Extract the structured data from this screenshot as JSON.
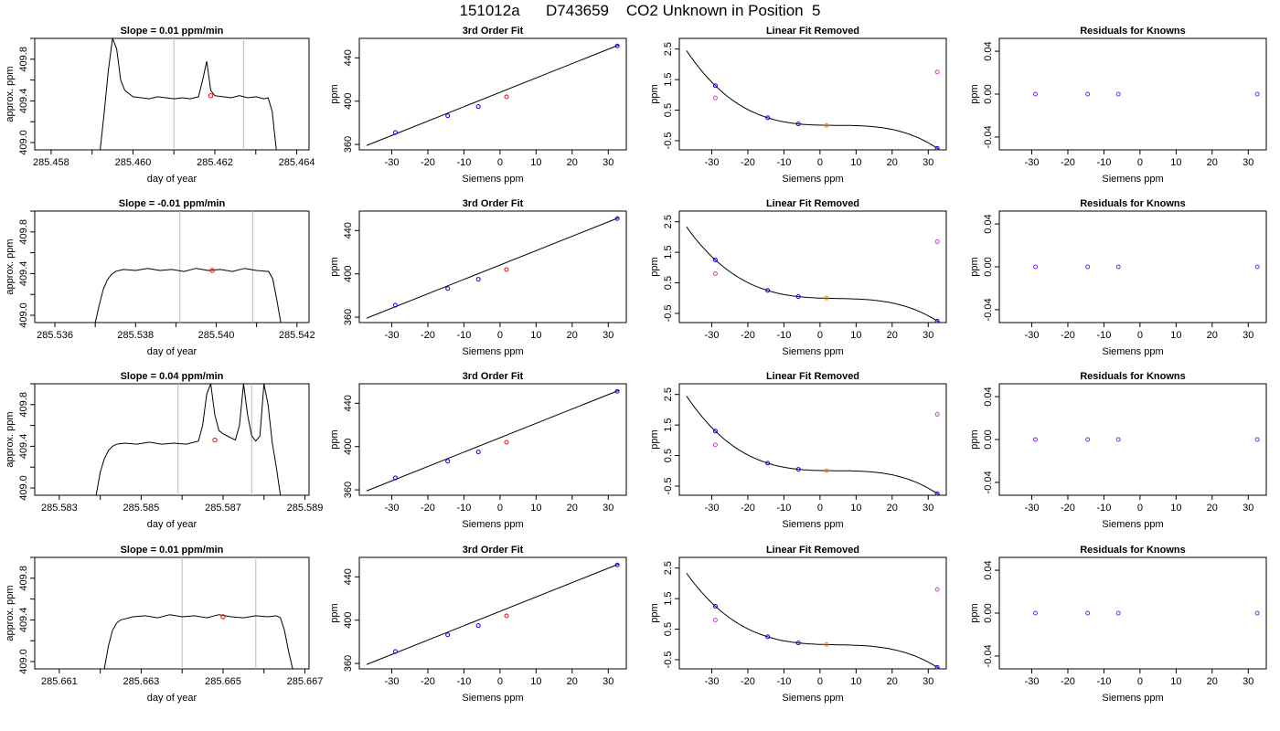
{
  "page_title": "151012a      D743659    CO2 Unknown in Position  5",
  "colors": {
    "trace": "#000000",
    "guide": "#bbbbbb",
    "unknown": "#ff0000",
    "knowns": "#0000ff",
    "fit_point": "#ff0000",
    "lin_removed_unknown": "#ff8800",
    "raw_point": "#cc44cc",
    "residual_point": "#7a22ff"
  },
  "chart_data": [
    {
      "type": "line",
      "row": 1,
      "col": 1,
      "title": "Slope =  0.01  ppm/min",
      "xlabel": "day of year",
      "ylabel": "approx. ppm",
      "xlim": [
        285.4576,
        285.4643
      ],
      "ylim": [
        408.93,
        410.0
      ],
      "xticks": [
        "285.458",
        "285.460",
        "285.462",
        "285.464"
      ],
      "yticks": [
        "409.0",
        "409.4",
        "409.8"
      ],
      "guides_x": [
        285.461,
        285.4627
      ],
      "marker": {
        "x": 285.4619,
        "y": 409.45
      },
      "trace_x": [
        285.4592,
        285.4593,
        285.4594,
        285.4595,
        285.4596,
        285.4597,
        285.4598,
        285.46,
        285.4602,
        285.4604,
        285.4606,
        285.4608,
        285.461,
        285.4612,
        285.4614,
        285.4616,
        285.4617,
        285.4618,
        285.4619,
        285.462,
        285.4622,
        285.4624,
        285.4626,
        285.4628,
        285.463,
        285.4632,
        285.4633,
        285.4634,
        285.4635
      ],
      "trace_y": [
        408.93,
        409.3,
        409.7,
        410.0,
        409.9,
        409.6,
        409.5,
        409.44,
        409.43,
        409.42,
        409.44,
        409.43,
        409.42,
        409.43,
        409.42,
        409.44,
        409.6,
        409.78,
        409.5,
        409.45,
        409.44,
        409.43,
        409.45,
        409.43,
        409.44,
        409.42,
        409.43,
        409.3,
        408.93
      ]
    },
    {
      "type": "scatter",
      "row": 1,
      "col": 2,
      "title": "3rd Order Fit",
      "xlabel": "Siemens ppm",
      "ylabel": "ppm",
      "xlim": [
        -39,
        35
      ],
      "ylim": [
        355,
        458
      ],
      "xticks": [
        "-30",
        "-20",
        "-10",
        "0",
        "10",
        "20",
        "30"
      ],
      "yticks": [
        "360",
        "400",
        "440"
      ],
      "knowns": {
        "x": [
          -29,
          -14.5,
          -6,
          32.5
        ],
        "y": [
          371,
          386.5,
          395,
          451
        ]
      },
      "unknown": {
        "x": [
          1.8
        ],
        "y": [
          404
        ]
      },
      "fit_line": {
        "x": [
          -37,
          33
        ],
        "y": [
          359,
          452
        ]
      }
    },
    {
      "type": "scatter",
      "row": 1,
      "col": 3,
      "title": "Linear Fit Removed",
      "xlabel": "Siemens ppm",
      "ylabel": "ppm",
      "xlim": [
        -39,
        35
      ],
      "ylim": [
        -0.8,
        2.85
      ],
      "xticks": [
        "-30",
        "-20",
        "-10",
        "0",
        "10",
        "20",
        "30"
      ],
      "yticks": [
        "-0.5",
        "0.5",
        "1.5",
        "2.5"
      ],
      "knowns": {
        "x": [
          -29,
          -14.5,
          -6,
          32.5
        ],
        "y": [
          1.3,
          0.25,
          0.05,
          -0.75
        ]
      },
      "unknown": {
        "x": [
          1.8
        ],
        "y": [
          0.0
        ]
      },
      "raw": {
        "x": [
          -29,
          32.5
        ],
        "y": [
          0.9,
          1.75
        ]
      },
      "fit_curve": {
        "x0": -37,
        "x1": 33,
        "a": 0.0,
        "b": 0.0,
        "c": -0.0,
        "d": 0.0
      }
    },
    {
      "type": "scatter",
      "row": 1,
      "col": 4,
      "title": "Residuals for Knowns",
      "xlabel": "Siemens ppm",
      "ylabel": "ppm",
      "xlim": [
        -39,
        35
      ],
      "ylim": [
        -0.052,
        0.052
      ],
      "xticks": [
        "-30",
        "-20",
        "-10",
        "0",
        "10",
        "20",
        "30"
      ],
      "yticks": [
        "-0.04",
        "0.00",
        "0.04"
      ],
      "knowns": {
        "x": [
          -29,
          -14.5,
          -6,
          32.5
        ],
        "y": [
          0,
          0,
          0,
          0
        ]
      }
    },
    {
      "type": "line",
      "row": 2,
      "col": 1,
      "title": "Slope =  -0.01  ppm/min",
      "xlabel": "day of year",
      "ylabel": "approx. ppm",
      "xlim": [
        285.5355,
        285.5423
      ],
      "ylim": [
        408.93,
        410.0
      ],
      "xticks": [
        "285.536",
        "285.538",
        "285.540",
        "285.542"
      ],
      "yticks": [
        "409.0",
        "409.4",
        "409.8"
      ],
      "guides_x": [
        285.5391,
        285.5409
      ],
      "marker": {
        "x": 285.5399,
        "y": 409.43
      },
      "trace_x": [
        285.537,
        285.5371,
        285.5372,
        285.5373,
        285.5374,
        285.5375,
        285.5377,
        285.538,
        285.5383,
        285.5386,
        285.5389,
        285.5392,
        285.5395,
        285.5398,
        285.5401,
        285.5404,
        285.5407,
        285.541,
        285.5413,
        285.5414,
        285.5415,
        285.5416
      ],
      "trace_y": [
        408.93,
        409.1,
        409.25,
        409.34,
        409.39,
        409.42,
        409.44,
        409.43,
        409.45,
        409.43,
        409.44,
        409.42,
        409.45,
        409.43,
        409.44,
        409.42,
        409.45,
        409.43,
        409.42,
        409.35,
        409.15,
        408.93
      ]
    },
    {
      "type": "scatter",
      "row": 2,
      "col": 2,
      "title": "3rd Order Fit",
      "xlabel": "Siemens ppm",
      "ylabel": "ppm",
      "xlim": [
        -39,
        35
      ],
      "ylim": [
        355,
        458
      ],
      "xticks": [
        "-30",
        "-20",
        "-10",
        "0",
        "10",
        "20",
        "30"
      ],
      "yticks": [
        "360",
        "400",
        "440"
      ],
      "knowns": {
        "x": [
          -29,
          -14.5,
          -6,
          32.5
        ],
        "y": [
          371,
          386.5,
          395,
          451
        ]
      },
      "unknown": {
        "x": [
          1.8
        ],
        "y": [
          404
        ]
      },
      "fit_line": {
        "x": [
          -37,
          33
        ],
        "y": [
          359,
          452
        ]
      }
    },
    {
      "type": "scatter",
      "row": 2,
      "col": 3,
      "title": "Linear Fit Removed",
      "xlabel": "Siemens ppm",
      "ylabel": "ppm",
      "xlim": [
        -39,
        35
      ],
      "ylim": [
        -0.8,
        2.85
      ],
      "xticks": [
        "-30",
        "-20",
        "-10",
        "0",
        "10",
        "20",
        "30"
      ],
      "yticks": [
        "-0.5",
        "0.5",
        "1.5",
        "2.5"
      ],
      "knowns": {
        "x": [
          -29,
          -14.5,
          -6,
          32.5
        ],
        "y": [
          1.25,
          0.25,
          0.05,
          -0.75
        ]
      },
      "unknown": {
        "x": [
          1.8
        ],
        "y": [
          0.0
        ]
      },
      "raw": {
        "x": [
          -29,
          32.5
        ],
        "y": [
          0.8,
          1.85
        ]
      }
    },
    {
      "type": "scatter",
      "row": 2,
      "col": 4,
      "title": "Residuals for Knowns",
      "xlabel": "Siemens ppm",
      "ylabel": "ppm",
      "xlim": [
        -39,
        35
      ],
      "ylim": [
        -0.052,
        0.052
      ],
      "xticks": [
        "-30",
        "-20",
        "-10",
        "0",
        "10",
        "20",
        "30"
      ],
      "yticks": [
        "-0.04",
        "0.00",
        "0.04"
      ],
      "knowns": {
        "x": [
          -29,
          -14.5,
          -6,
          32.5
        ],
        "y": [
          0,
          0,
          0,
          0
        ]
      }
    },
    {
      "type": "line",
      "row": 3,
      "col": 1,
      "title": "Slope =  0.04  ppm/min",
      "xlabel": "day of year",
      "ylabel": "approx. ppm",
      "xlim": [
        285.5824,
        285.5891
      ],
      "ylim": [
        408.93,
        410.0
      ],
      "xticks": [
        "285.583",
        "285.585",
        "285.587",
        "285.589"
      ],
      "yticks": [
        "409.0",
        "409.4",
        "409.8"
      ],
      "guides_x": [
        285.5859,
        285.5877
      ],
      "marker": {
        "x": 285.5868,
        "y": 409.46
      },
      "trace_x": [
        285.5839,
        285.584,
        285.5841,
        285.5842,
        285.5843,
        285.5844,
        285.5846,
        285.5849,
        285.5852,
        285.5855,
        285.5858,
        285.5861,
        285.5864,
        285.5865,
        285.5866,
        285.5867,
        285.5868,
        285.5869,
        285.587,
        285.5871,
        285.5872,
        285.5873,
        285.5874,
        285.5875,
        285.5876,
        285.5877,
        285.5878,
        285.5879,
        285.588,
        285.5881,
        285.5882,
        285.5883,
        285.5884
      ],
      "trace_y": [
        408.93,
        409.15,
        409.28,
        409.36,
        409.4,
        409.42,
        409.43,
        409.42,
        409.44,
        409.42,
        409.43,
        409.42,
        409.45,
        409.6,
        409.9,
        410.0,
        409.7,
        409.55,
        409.52,
        409.5,
        409.48,
        409.46,
        409.6,
        410.0,
        409.7,
        409.5,
        409.45,
        409.5,
        410.0,
        409.8,
        409.44,
        409.2,
        408.93
      ]
    },
    {
      "type": "scatter",
      "row": 3,
      "col": 2,
      "title": "3rd Order Fit",
      "xlabel": "Siemens ppm",
      "ylabel": "ppm",
      "xlim": [
        -39,
        35
      ],
      "ylim": [
        355,
        458
      ],
      "xticks": [
        "-30",
        "-20",
        "-10",
        "0",
        "10",
        "20",
        "30"
      ],
      "yticks": [
        "360",
        "400",
        "440"
      ],
      "knowns": {
        "x": [
          -29,
          -14.5,
          -6,
          32.5
        ],
        "y": [
          371,
          386.5,
          395,
          451
        ]
      },
      "unknown": {
        "x": [
          1.8
        ],
        "y": [
          404
        ]
      },
      "fit_line": {
        "x": [
          -37,
          33
        ],
        "y": [
          359,
          452
        ]
      }
    },
    {
      "type": "scatter",
      "row": 3,
      "col": 3,
      "title": "Linear Fit Removed",
      "xlabel": "Siemens ppm",
      "ylabel": "ppm",
      "xlim": [
        -39,
        35
      ],
      "ylim": [
        -0.8,
        2.85
      ],
      "xticks": [
        "-30",
        "-20",
        "-10",
        "0",
        "10",
        "20",
        "30"
      ],
      "yticks": [
        "-0.5",
        "0.5",
        "1.5",
        "2.5"
      ],
      "knowns": {
        "x": [
          -29,
          -14.5,
          -6,
          32.5
        ],
        "y": [
          1.3,
          0.25,
          0.05,
          -0.75
        ]
      },
      "unknown": {
        "x": [
          1.8
        ],
        "y": [
          0.0
        ]
      },
      "raw": {
        "x": [
          -29,
          32.5
        ],
        "y": [
          0.85,
          1.85
        ]
      }
    },
    {
      "type": "scatter",
      "row": 3,
      "col": 4,
      "title": "Residuals for Knowns",
      "xlabel": "Siemens ppm",
      "ylabel": "ppm",
      "xlim": [
        -39,
        35
      ],
      "ylim": [
        -0.052,
        0.052
      ],
      "xticks": [
        "-30",
        "-20",
        "-10",
        "0",
        "10",
        "20",
        "30"
      ],
      "yticks": [
        "-0.04",
        "0.00",
        "0.04"
      ],
      "knowns": {
        "x": [
          -29,
          -14.5,
          -6,
          32.5
        ],
        "y": [
          0,
          0,
          0,
          0
        ]
      }
    },
    {
      "type": "line",
      "row": 4,
      "col": 1,
      "title": "Slope =  0.01  ppm/min",
      "xlabel": "day of year",
      "ylabel": "approx. ppm",
      "xlim": [
        285.6604,
        285.6671
      ],
      "ylim": [
        408.93,
        410.0
      ],
      "xticks": [
        "285.661",
        "285.663",
        "285.665",
        "285.667"
      ],
      "yticks": [
        "409.0",
        "409.4",
        "409.8"
      ],
      "guides_x": [
        285.664,
        285.6658
      ],
      "marker": {
        "x": 285.665,
        "y": 409.43
      },
      "trace_x": [
        285.6621,
        285.6622,
        285.6623,
        285.6624,
        285.6625,
        285.6626,
        285.6628,
        285.6631,
        285.6634,
        285.6637,
        285.664,
        285.6643,
        285.6646,
        285.6649,
        285.6652,
        285.6655,
        285.6658,
        285.6661,
        285.6663,
        285.6664,
        285.6665,
        285.6666,
        285.6667
      ],
      "trace_y": [
        408.93,
        409.15,
        409.3,
        409.37,
        409.4,
        409.41,
        409.43,
        409.44,
        409.42,
        409.45,
        409.43,
        409.44,
        409.42,
        409.45,
        409.43,
        409.42,
        409.44,
        409.43,
        409.44,
        409.42,
        409.3,
        409.1,
        408.93
      ]
    },
    {
      "type": "scatter",
      "row": 4,
      "col": 2,
      "title": "3rd Order Fit",
      "xlabel": "Siemens ppm",
      "ylabel": "ppm",
      "xlim": [
        -39,
        35
      ],
      "ylim": [
        355,
        458
      ],
      "xticks": [
        "-30",
        "-20",
        "-10",
        "0",
        "10",
        "20",
        "30"
      ],
      "yticks": [
        "360",
        "400",
        "440"
      ],
      "knowns": {
        "x": [
          -29,
          -14.5,
          -6,
          32.5
        ],
        "y": [
          371,
          386.5,
          395,
          451
        ]
      },
      "unknown": {
        "x": [
          1.8
        ],
        "y": [
          404
        ]
      },
      "fit_line": {
        "x": [
          -37,
          33
        ],
        "y": [
          359,
          452
        ]
      }
    },
    {
      "type": "scatter",
      "row": 4,
      "col": 3,
      "title": "Linear Fit Removed",
      "xlabel": "Siemens ppm",
      "ylabel": "ppm",
      "xlim": [
        -39,
        35
      ],
      "ylim": [
        -0.8,
        2.85
      ],
      "xticks": [
        "-30",
        "-20",
        "-10",
        "0",
        "10",
        "20",
        "30"
      ],
      "yticks": [
        "-0.5",
        "0.5",
        "1.5",
        "2.5"
      ],
      "knowns": {
        "x": [
          -29,
          -14.5,
          -6,
          32.5
        ],
        "y": [
          1.25,
          0.25,
          0.05,
          -0.75
        ]
      },
      "unknown": {
        "x": [
          1.8
        ],
        "y": [
          0.0
        ]
      },
      "raw": {
        "x": [
          -29,
          32.5
        ],
        "y": [
          0.8,
          1.8
        ]
      }
    },
    {
      "type": "scatter",
      "row": 4,
      "col": 4,
      "title": "Residuals for Knowns",
      "xlabel": "Siemens ppm",
      "ylabel": "ppm",
      "xlim": [
        -39,
        35
      ],
      "ylim": [
        -0.052,
        0.052
      ],
      "xticks": [
        "-30",
        "-20",
        "-10",
        "0",
        "10",
        "20",
        "30"
      ],
      "yticks": [
        "-0.04",
        "0.00",
        "0.04"
      ],
      "knowns": {
        "x": [
          -29,
          -14.5,
          -6,
          32.5
        ],
        "y": [
          0,
          0,
          0,
          0
        ]
      }
    }
  ]
}
